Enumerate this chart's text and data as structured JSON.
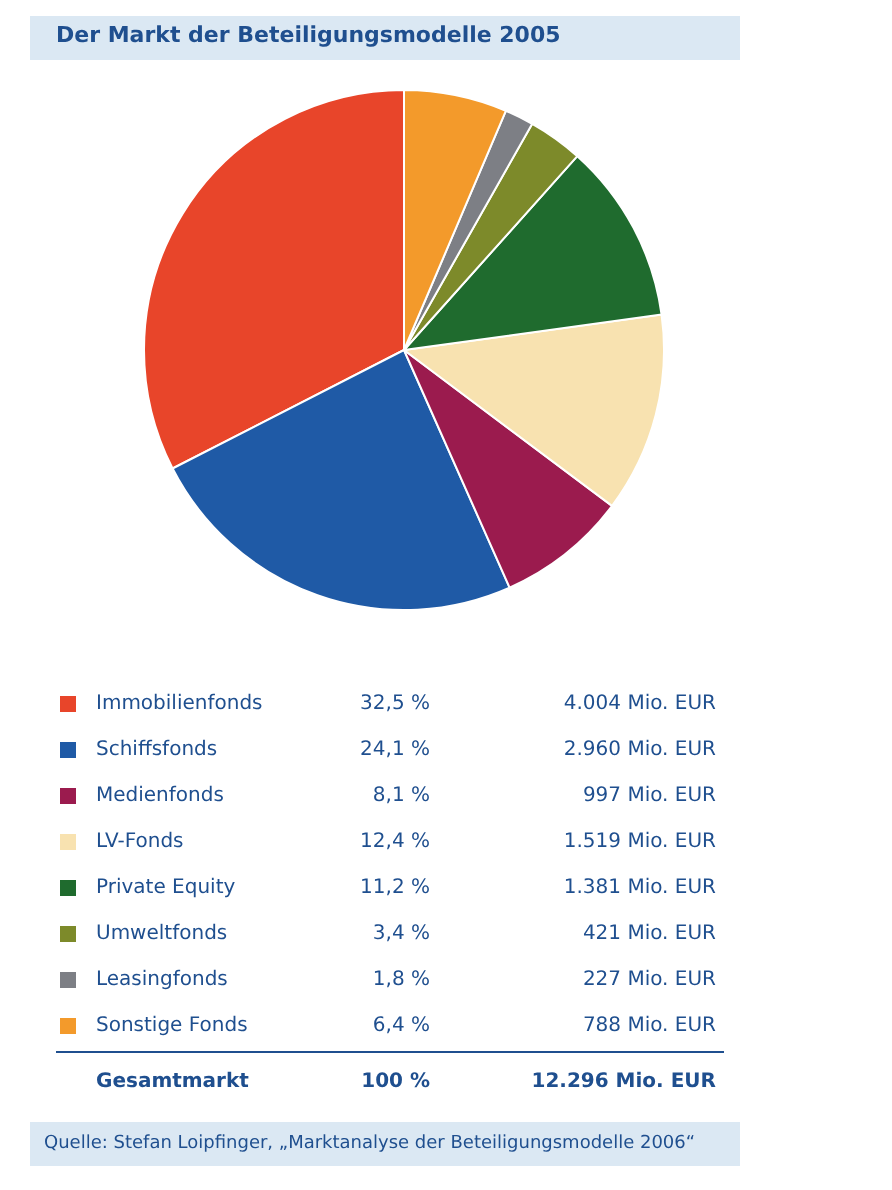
{
  "chart_data": {
    "type": "pie",
    "title": "Der Markt der Beteiligungsmodelle 2005",
    "categories": [
      "Immobilienfonds",
      "Schiffsfonds",
      "Medienfonds",
      "LV-Fonds",
      "Private Equity",
      "Umweltfonds",
      "Leasingfonds",
      "Sonstige Fonds"
    ],
    "values": [
      32.5,
      24.1,
      8.1,
      12.4,
      11.2,
      3.4,
      1.8,
      6.4
    ],
    "legend": "bottom",
    "colors": [
      "#e8452a",
      "#1f5aa6",
      "#9b1b4e",
      "#f8e2b0",
      "#1f6b2e",
      "#7d8a2a",
      "#7d7f85",
      "#f39a2b"
    ],
    "value_labels": [
      "32,5 %",
      "24,1 %",
      "8,1 %",
      "12,4 %",
      "11,2 %",
      "3,4 %",
      "1,8 %",
      "6,4 %"
    ],
    "annotations": [
      "4.004 Mio. EUR",
      "2.960 Mio. EUR",
      "997 Mio. EUR",
      "1.519 Mio. EUR",
      "1.381 Mio. EUR",
      "421 Mio. EUR",
      "227 Mio. EUR",
      "788 Mio. EUR",
      "Gesamtmarkt",
      "100 %",
      "12.296 Mio. EUR",
      "Quelle: Stefan Loipfinger, „Marktanalyse der Beteiligungsmodelle 2006“"
    ]
  }
}
